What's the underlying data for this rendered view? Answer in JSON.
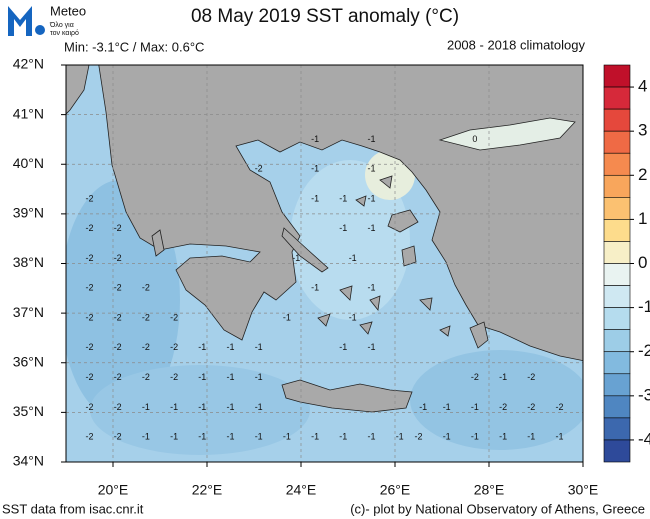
{
  "header": {
    "logo_name": "Meteo",
    "logo_tagline_1": "Όλο για",
    "logo_tagline_2": "τον καιρό",
    "title": "08 May 2019 SST anomaly (°C)",
    "minmax": "Min: -3.1°C / Max: 0.6°C",
    "climatology": "2008 - 2018 climatology"
  },
  "map": {
    "xlim": [
      19,
      30
    ],
    "ylim": [
      34,
      42
    ],
    "xticks": [
      {
        "value": 20,
        "label": "20°E"
      },
      {
        "value": 22,
        "label": "22°E"
      },
      {
        "value": 24,
        "label": "24°E"
      },
      {
        "value": 26,
        "label": "26°E"
      },
      {
        "value": 28,
        "label": "28°E"
      },
      {
        "value": 30,
        "label": "30°E"
      }
    ],
    "yticks": [
      {
        "value": 34,
        "label": "34°N"
      },
      {
        "value": 35,
        "label": "35°N"
      },
      {
        "value": 36,
        "label": "36°N"
      },
      {
        "value": 37,
        "label": "37°N"
      },
      {
        "value": 38,
        "label": "38°N"
      },
      {
        "value": 39,
        "label": "39°N"
      },
      {
        "value": 40,
        "label": "40°N"
      },
      {
        "value": 41,
        "label": "41°N"
      },
      {
        "value": 42,
        "label": "42°N"
      }
    ],
    "contour_labels": [
      {
        "lon": 19.5,
        "lat": 34.5,
        "value": -2
      },
      {
        "lon": 20.1,
        "lat": 34.5,
        "value": -2
      },
      {
        "lon": 20.7,
        "lat": 34.5,
        "value": -1
      },
      {
        "lon": 21.3,
        "lat": 34.5,
        "value": -1
      },
      {
        "lon": 21.9,
        "lat": 34.5,
        "value": -1
      },
      {
        "lon": 22.5,
        "lat": 34.5,
        "value": -1
      },
      {
        "lon": 23.1,
        "lat": 34.5,
        "value": -1
      },
      {
        "lon": 23.7,
        "lat": 34.5,
        "value": -1
      },
      {
        "lon": 24.3,
        "lat": 34.5,
        "value": -1
      },
      {
        "lon": 24.9,
        "lat": 34.5,
        "value": -1
      },
      {
        "lon": 25.5,
        "lat": 34.5,
        "value": -1
      },
      {
        "lon": 26.1,
        "lat": 34.5,
        "value": -1
      },
      {
        "lon": 26.5,
        "lat": 34.5,
        "value": -2
      },
      {
        "lon": 27.1,
        "lat": 34.5,
        "value": -1
      },
      {
        "lon": 27.7,
        "lat": 34.5,
        "value": -1
      },
      {
        "lon": 28.3,
        "lat": 34.5,
        "value": -1
      },
      {
        "lon": 28.9,
        "lat": 34.5,
        "value": -1
      },
      {
        "lon": 29.5,
        "lat": 34.5,
        "value": -1
      },
      {
        "lon": 19.5,
        "lat": 35.1,
        "value": -2
      },
      {
        "lon": 20.1,
        "lat": 35.1,
        "value": -2
      },
      {
        "lon": 20.7,
        "lat": 35.1,
        "value": -1
      },
      {
        "lon": 21.3,
        "lat": 35.1,
        "value": -1
      },
      {
        "lon": 21.9,
        "lat": 35.1,
        "value": -1
      },
      {
        "lon": 22.5,
        "lat": 35.1,
        "value": -1
      },
      {
        "lon": 23.1,
        "lat": 35.1,
        "value": -1
      },
      {
        "lon": 26.6,
        "lat": 35.1,
        "value": -1
      },
      {
        "lon": 27.1,
        "lat": 35.1,
        "value": -1
      },
      {
        "lon": 27.7,
        "lat": 35.1,
        "value": -1
      },
      {
        "lon": 28.3,
        "lat": 35.1,
        "value": -2
      },
      {
        "lon": 28.9,
        "lat": 35.1,
        "value": -2
      },
      {
        "lon": 29.5,
        "lat": 35.1,
        "value": -2
      },
      {
        "lon": 19.5,
        "lat": 35.7,
        "value": -2
      },
      {
        "lon": 20.1,
        "lat": 35.7,
        "value": -2
      },
      {
        "lon": 20.7,
        "lat": 35.7,
        "value": -2
      },
      {
        "lon": 21.3,
        "lat": 35.7,
        "value": -2
      },
      {
        "lon": 21.9,
        "lat": 35.7,
        "value": -1
      },
      {
        "lon": 22.5,
        "lat": 35.7,
        "value": -1
      },
      {
        "lon": 23.1,
        "lat": 35.7,
        "value": -1
      },
      {
        "lon": 27.7,
        "lat": 35.7,
        "value": -2
      },
      {
        "lon": 28.3,
        "lat": 35.7,
        "value": -1
      },
      {
        "lon": 28.9,
        "lat": 35.7,
        "value": -2
      },
      {
        "lon": 19.5,
        "lat": 36.3,
        "value": -2
      },
      {
        "lon": 20.1,
        "lat": 36.3,
        "value": -2
      },
      {
        "lon": 20.7,
        "lat": 36.3,
        "value": -2
      },
      {
        "lon": 21.3,
        "lat": 36.3,
        "value": -2
      },
      {
        "lon": 21.9,
        "lat": 36.3,
        "value": -1
      },
      {
        "lon": 22.5,
        "lat": 36.3,
        "value": -1
      },
      {
        "lon": 23.1,
        "lat": 36.3,
        "value": -1
      },
      {
        "lon": 24.9,
        "lat": 36.3,
        "value": -1
      },
      {
        "lon": 25.5,
        "lat": 36.3,
        "value": -1
      },
      {
        "lon": 19.5,
        "lat": 36.9,
        "value": -2
      },
      {
        "lon": 20.1,
        "lat": 36.9,
        "value": -2
      },
      {
        "lon": 20.7,
        "lat": 36.9,
        "value": -2
      },
      {
        "lon": 21.3,
        "lat": 36.9,
        "value": -2
      },
      {
        "lon": 23.7,
        "lat": 36.9,
        "value": -1
      },
      {
        "lon": 25.1,
        "lat": 36.9,
        "value": -1
      },
      {
        "lon": 19.5,
        "lat": 37.5,
        "value": -2
      },
      {
        "lon": 20.1,
        "lat": 37.5,
        "value": -2
      },
      {
        "lon": 20.7,
        "lat": 37.5,
        "value": -2
      },
      {
        "lon": 24.3,
        "lat": 37.5,
        "value": -1
      },
      {
        "lon": 25.5,
        "lat": 37.5,
        "value": -1
      },
      {
        "lon": 19.5,
        "lat": 38.1,
        "value": -2
      },
      {
        "lon": 20.1,
        "lat": 38.1,
        "value": -2
      },
      {
        "lon": 23.9,
        "lat": 38.1,
        "value": -1
      },
      {
        "lon": 25.1,
        "lat": 38.1,
        "value": -1
      },
      {
        "lon": 19.5,
        "lat": 38.7,
        "value": -2
      },
      {
        "lon": 20.1,
        "lat": 38.7,
        "value": -2
      },
      {
        "lon": 24.9,
        "lat": 38.7,
        "value": -1
      },
      {
        "lon": 25.5,
        "lat": 38.7,
        "value": -1
      },
      {
        "lon": 19.5,
        "lat": 39.3,
        "value": -2
      },
      {
        "lon": 24.3,
        "lat": 39.3,
        "value": -1
      },
      {
        "lon": 24.9,
        "lat": 39.3,
        "value": -1
      },
      {
        "lon": 25.5,
        "lat": 39.3,
        "value": -1
      },
      {
        "lon": 23.1,
        "lat": 39.9,
        "value": -2
      },
      {
        "lon": 24.3,
        "lat": 39.9,
        "value": -1
      },
      {
        "lon": 25.5,
        "lat": 39.9,
        "value": -1
      },
      {
        "lon": 24.3,
        "lat": 40.5,
        "value": -1
      },
      {
        "lon": 25.5,
        "lat": 40.5,
        "value": -1
      },
      {
        "lon": 27.7,
        "lat": 40.5,
        "value": 0
      }
    ]
  },
  "colorbar": {
    "bounds": [
      4.5,
      4,
      3.5,
      3,
      2.5,
      2,
      1.5,
      1,
      0.5,
      0,
      -0.5,
      -1,
      -1.5,
      -2,
      -2.5,
      -3,
      -3.5,
      -4,
      -4.5
    ],
    "colors": [
      "#c0102a",
      "#d6293a",
      "#e5483c",
      "#ef6a45",
      "#f58a4f",
      "#f8a65c",
      "#fbc171",
      "#fddc8c",
      "#f7efc7",
      "#e9f3f1",
      "#cfe8f2",
      "#b5dcee",
      "#9dcde7",
      "#82badf",
      "#68a2d2",
      "#4f86c1",
      "#3c68ae",
      "#2e4a9a"
    ],
    "ticks": [
      4,
      3,
      2,
      1,
      0,
      -1,
      -2,
      -3,
      -4
    ]
  },
  "footer": {
    "source": "SST data from isac.cnr.it",
    "credit": "(c)- plot by National Observatory of Athens, Greece"
  }
}
